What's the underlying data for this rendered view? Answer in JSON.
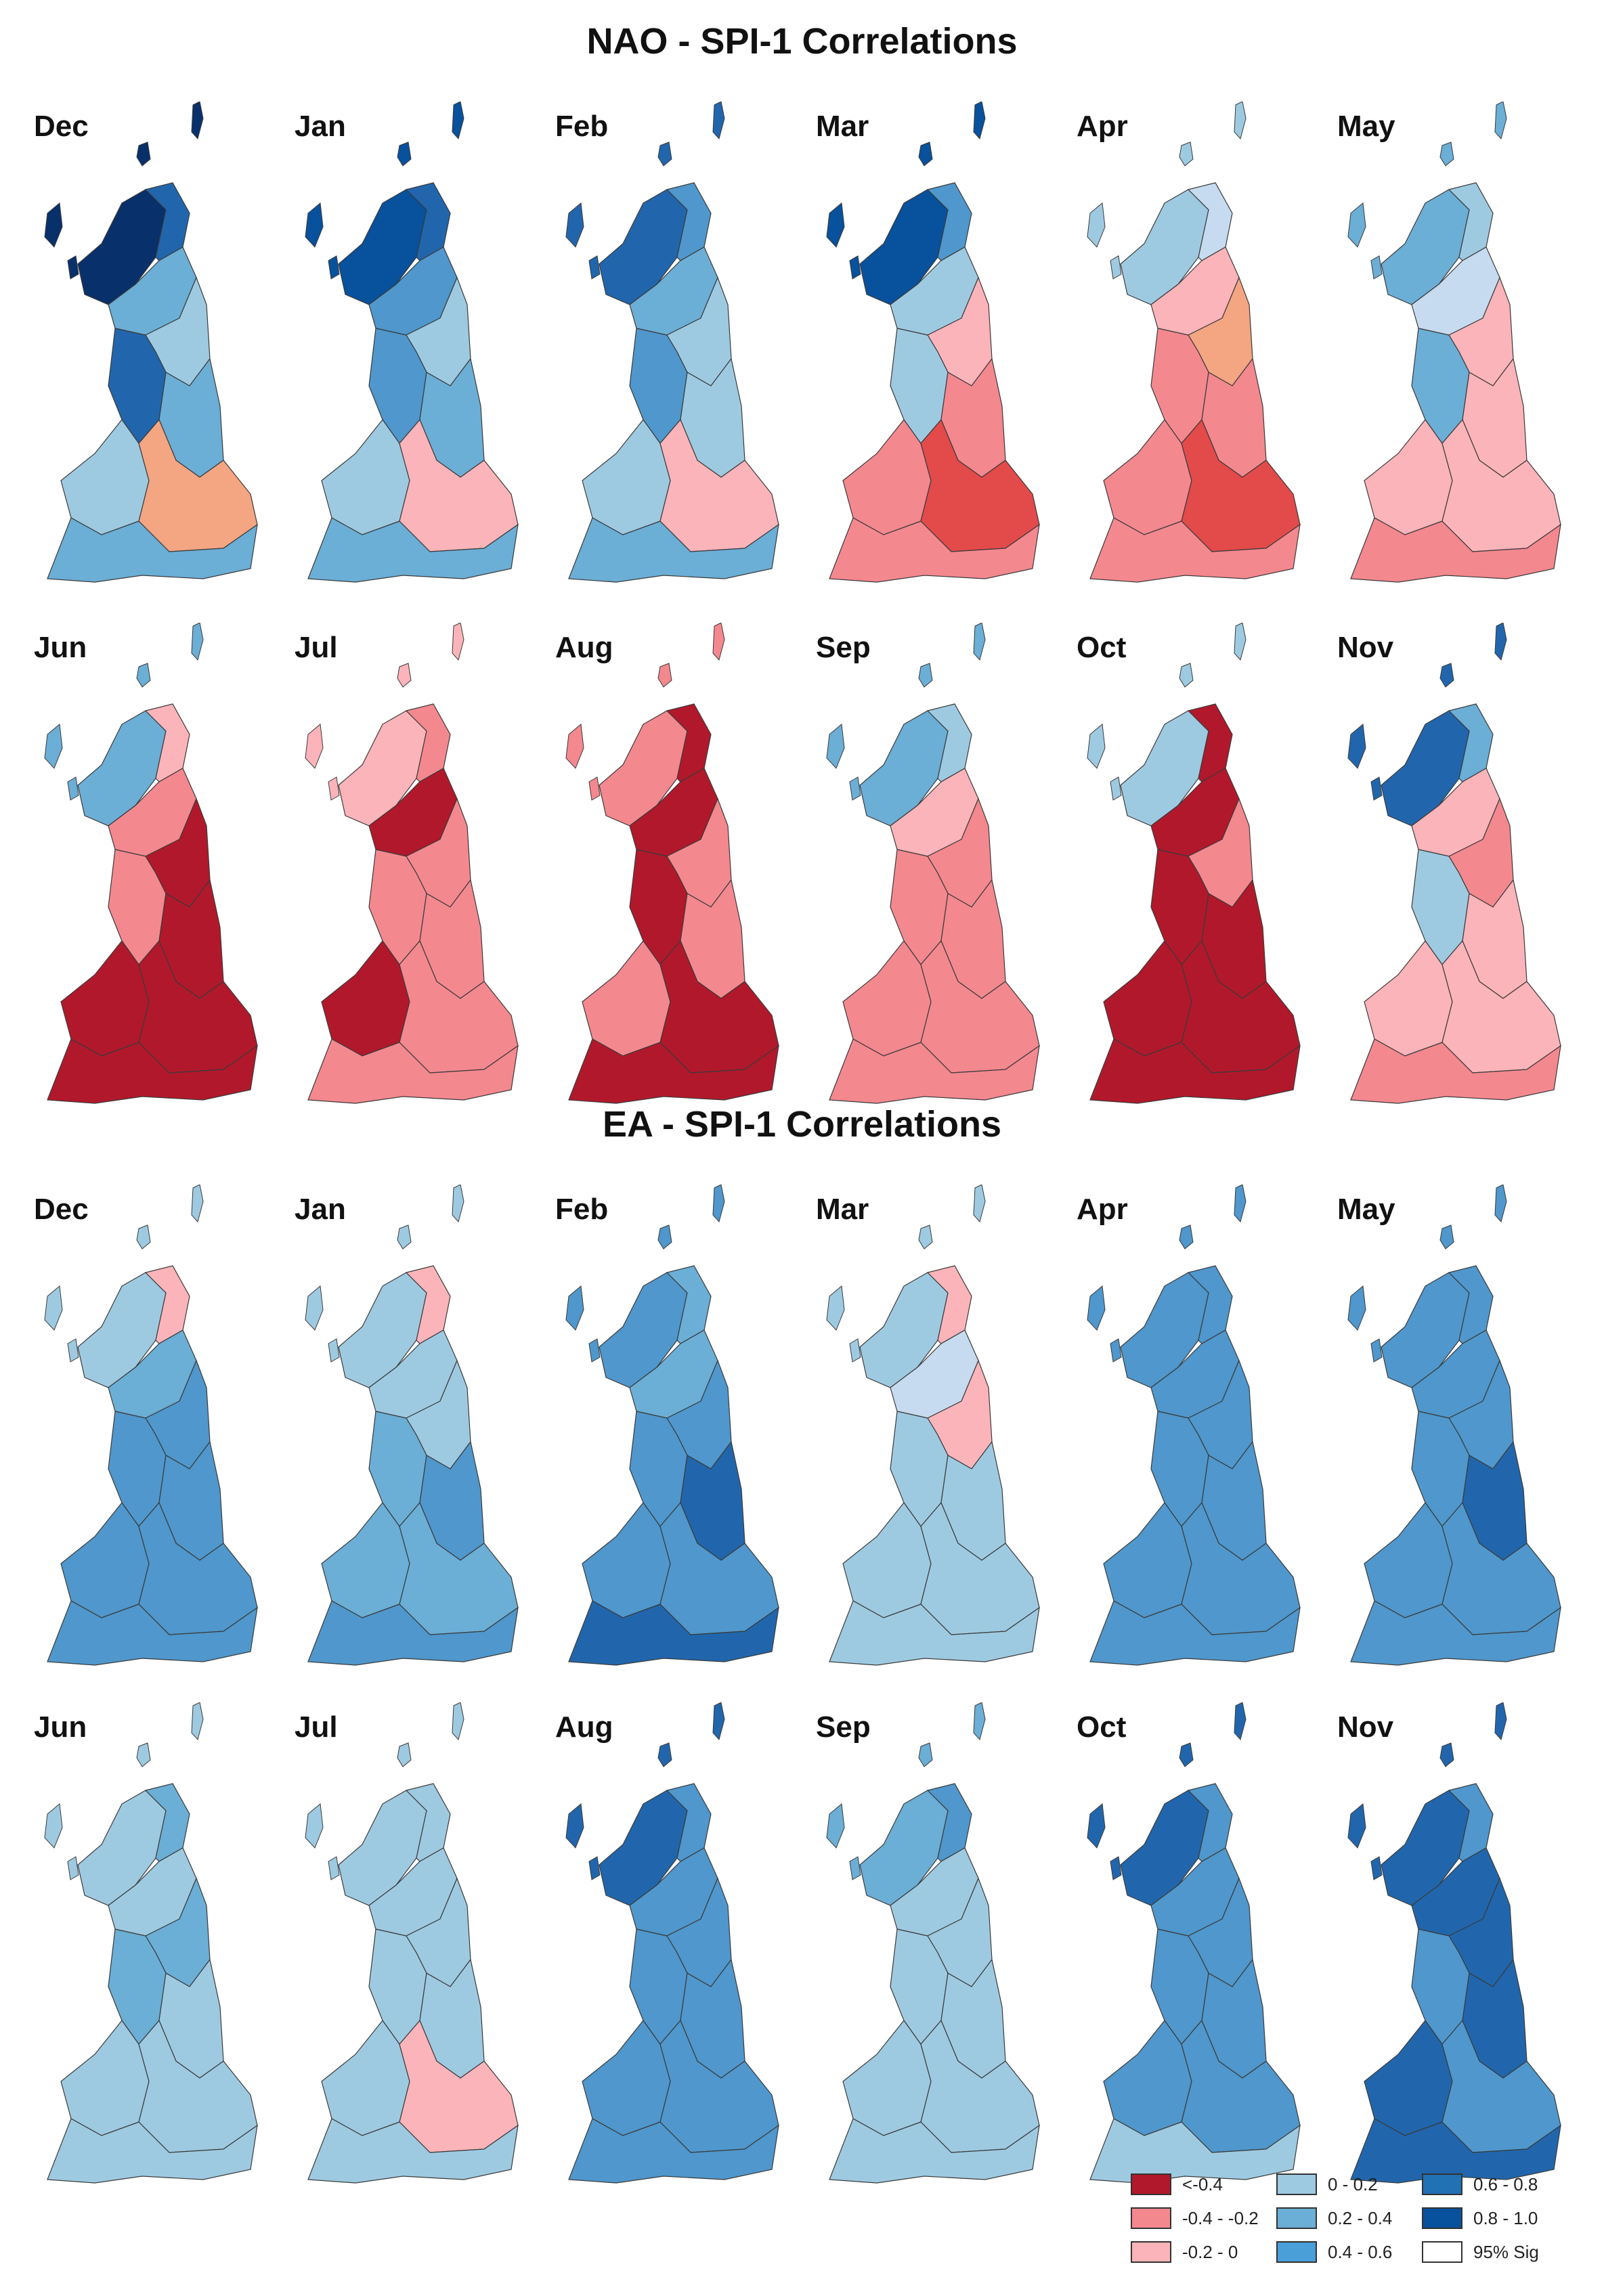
{
  "sections": [
    {
      "title": "NAO - SPI-1 Correlations",
      "rows": [
        [
          {
            "month": "Dec",
            "fills": [
              "#08306b",
              "#2166ac",
              "#6baed6",
              "#9ecae1",
              "#2166ac",
              "#6baed6",
              "#9ecae1",
              "#f4a582",
              "#6baed6"
            ]
          },
          {
            "month": "Jan",
            "fills": [
              "#08519c",
              "#2166ac",
              "#4f97cc",
              "#9ecae1",
              "#4f97cc",
              "#6baed6",
              "#9ecae1",
              "#fbb4b9",
              "#6baed6"
            ]
          },
          {
            "month": "Feb",
            "fills": [
              "#2166ac",
              "#4f97cc",
              "#6baed6",
              "#9ecae1",
              "#4f97cc",
              "#9ecae1",
              "#9ecae1",
              "#fbb4b9",
              "#6baed6"
            ]
          },
          {
            "month": "Mar",
            "fills": [
              "#08519c",
              "#4f97cc",
              "#9ecae1",
              "#fbb4b9",
              "#9ecae1",
              "#f4888f",
              "#f4888f",
              "#e34a4a",
              "#f4888f"
            ]
          },
          {
            "month": "Apr",
            "fills": [
              "#9ecae1",
              "#c6dbef",
              "#fbb4b9",
              "#f4a582",
              "#f4888f",
              "#f4888f",
              "#f4888f",
              "#e34a4a",
              "#f4888f"
            ]
          },
          {
            "month": "May",
            "fills": [
              "#6baed6",
              "#9ecae1",
              "#c6dbef",
              "#fbb4b9",
              "#6baed6",
              "#fbb4b9",
              "#fbb4b9",
              "#fbb4b9",
              "#f4888f"
            ]
          }
        ],
        [
          {
            "month": "Jun",
            "fills": [
              "#6baed6",
              "#fbb4b9",
              "#f4888f",
              "#b2182b",
              "#f4888f",
              "#b2182b",
              "#b2182b",
              "#b2182b",
              "#b2182b"
            ]
          },
          {
            "month": "Jul",
            "fills": [
              "#fbb4b9",
              "#f4888f",
              "#b2182b",
              "#f4888f",
              "#f4888f",
              "#f4888f",
              "#b2182b",
              "#f4888f",
              "#f4888f"
            ]
          },
          {
            "month": "Aug",
            "fills": [
              "#f4888f",
              "#b2182b",
              "#b2182b",
              "#f4888f",
              "#b2182b",
              "#f4888f",
              "#f4888f",
              "#b2182b",
              "#b2182b"
            ]
          },
          {
            "month": "Sep",
            "fills": [
              "#6baed6",
              "#9ecae1",
              "#fbb4b9",
              "#f4888f",
              "#f4888f",
              "#f4888f",
              "#f4888f",
              "#f4888f",
              "#f4888f"
            ]
          },
          {
            "month": "Oct",
            "fills": [
              "#9ecae1",
              "#b2182b",
              "#b2182b",
              "#f4888f",
              "#b2182b",
              "#b2182b",
              "#b2182b",
              "#b2182b",
              "#b2182b"
            ]
          },
          {
            "month": "Nov",
            "fills": [
              "#2166ac",
              "#6baed6",
              "#fbb4b9",
              "#f4888f",
              "#9ecae1",
              "#fbb4b9",
              "#fbb4b9",
              "#fbb4b9",
              "#f4888f"
            ]
          }
        ]
      ]
    },
    {
      "title": "EA - SPI-1 Correlations",
      "rows": [
        [
          {
            "month": "Dec",
            "fills": [
              "#9ecae1",
              "#fbb4b9",
              "#6baed6",
              "#4f97cc",
              "#4f97cc",
              "#4f97cc",
              "#4f97cc",
              "#4f97cc",
              "#4f97cc"
            ]
          },
          {
            "month": "Jan",
            "fills": [
              "#9ecae1",
              "#fbb4b9",
              "#9ecae1",
              "#9ecae1",
              "#6baed6",
              "#4f97cc",
              "#6baed6",
              "#6baed6",
              "#4f97cc"
            ]
          },
          {
            "month": "Feb",
            "fills": [
              "#4f97cc",
              "#6baed6",
              "#6baed6",
              "#4f97cc",
              "#4f97cc",
              "#2166ac",
              "#4f97cc",
              "#4f97cc",
              "#2166ac"
            ]
          },
          {
            "month": "Mar",
            "fills": [
              "#9ecae1",
              "#fbb4b9",
              "#c6dbef",
              "#fbb4b9",
              "#9ecae1",
              "#9ecae1",
              "#9ecae1",
              "#9ecae1",
              "#9ecae1"
            ]
          },
          {
            "month": "Apr",
            "fills": [
              "#4f97cc",
              "#4f97cc",
              "#4f97cc",
              "#4f97cc",
              "#4f97cc",
              "#4f97cc",
              "#4f97cc",
              "#4f97cc",
              "#4f97cc"
            ]
          },
          {
            "month": "May",
            "fills": [
              "#4f97cc",
              "#4f97cc",
              "#4f97cc",
              "#4f97cc",
              "#4f97cc",
              "#2166ac",
              "#4f97cc",
              "#4f97cc",
              "#4f97cc"
            ]
          }
        ],
        [
          {
            "month": "Jun",
            "fills": [
              "#9ecae1",
              "#6baed6",
              "#9ecae1",
              "#6baed6",
              "#6baed6",
              "#9ecae1",
              "#9ecae1",
              "#9ecae1",
              "#9ecae1"
            ]
          },
          {
            "month": "Jul",
            "fills": [
              "#9ecae1",
              "#9ecae1",
              "#9ecae1",
              "#9ecae1",
              "#9ecae1",
              "#9ecae1",
              "#9ecae1",
              "#fbb4b9",
              "#9ecae1"
            ]
          },
          {
            "month": "Aug",
            "fills": [
              "#2166ac",
              "#4f97cc",
              "#4f97cc",
              "#4f97cc",
              "#4f97cc",
              "#4f97cc",
              "#4f97cc",
              "#4f97cc",
              "#4f97cc"
            ]
          },
          {
            "month": "Sep",
            "fills": [
              "#6baed6",
              "#4f97cc",
              "#9ecae1",
              "#9ecae1",
              "#9ecae1",
              "#9ecae1",
              "#9ecae1",
              "#9ecae1",
              "#9ecae1"
            ]
          },
          {
            "month": "Oct",
            "fills": [
              "#2166ac",
              "#4f97cc",
              "#4f97cc",
              "#4f97cc",
              "#4f97cc",
              "#4f97cc",
              "#4f97cc",
              "#4f97cc",
              "#9ecae1"
            ]
          },
          {
            "month": "Nov",
            "fills": [
              "#2166ac",
              "#4f97cc",
              "#2166ac",
              "#2166ac",
              "#4f97cc",
              "#2166ac",
              "#2166ac",
              "#4f97cc",
              "#2166ac"
            ]
          }
        ]
      ]
    }
  ],
  "legend": [
    {
      "label": "<-0.4",
      "color": "#b2182b"
    },
    {
      "label": "-0.4 - -0.2",
      "color": "#f4888f"
    },
    {
      "label": "-0.2 - 0",
      "color": "#fbb4b9"
    },
    {
      "label": "0 - 0.2",
      "color": "#9ecae1"
    },
    {
      "label": "0.2 - 0.4",
      "color": "#6baed6"
    },
    {
      "label": "0.4 - 0.6",
      "color": "#4a9fd8"
    },
    {
      "label": "0.6 - 0.8",
      "color": "#2171b5"
    },
    {
      "label": "0.8 - 1.0",
      "color": "#08519c"
    },
    {
      "label": "95% Sig",
      "color": "#ffffff"
    }
  ]
}
